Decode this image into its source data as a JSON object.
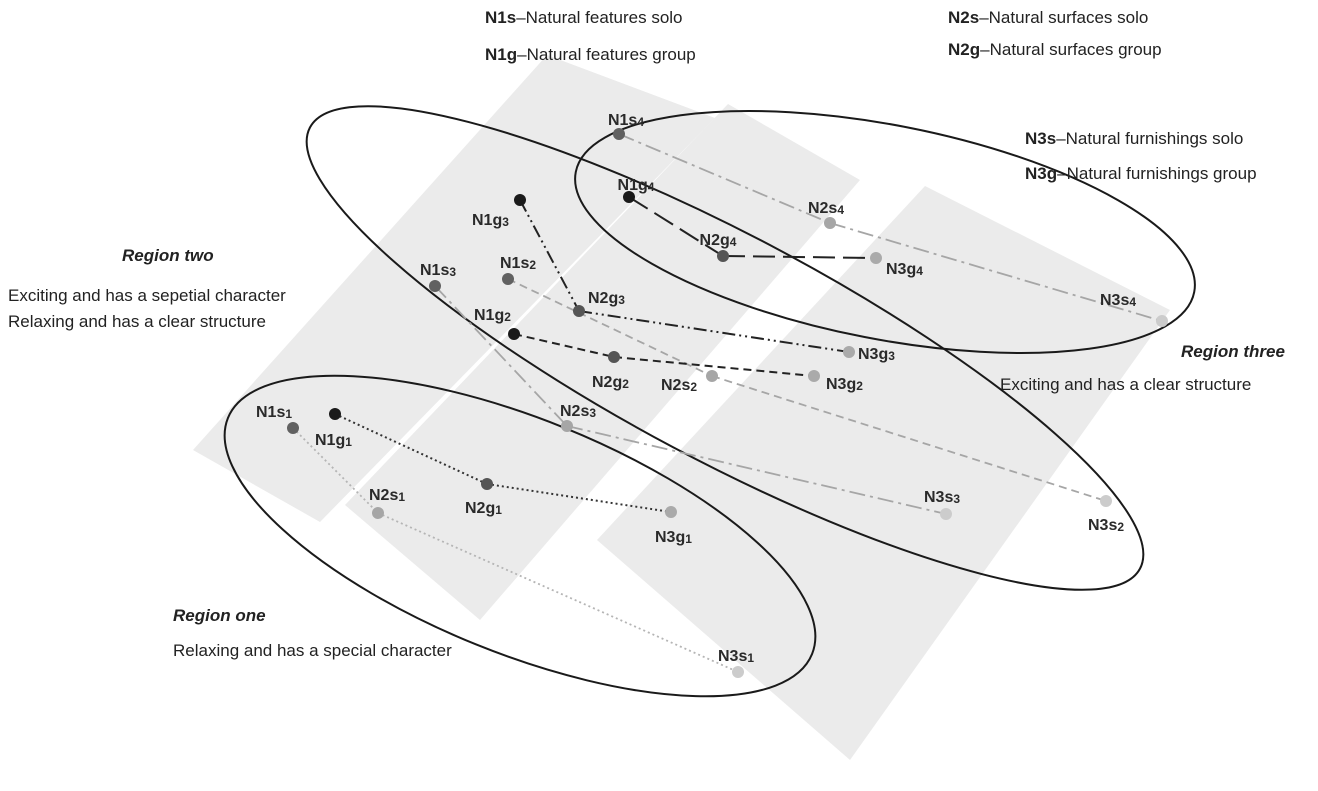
{
  "legend": [
    {
      "code": "N1s",
      "text": "Natural features solo"
    },
    {
      "code": "N1g",
      "text": "Natural features group"
    },
    {
      "code": "N2s",
      "text": "Natural surfaces solo"
    },
    {
      "code": "N2g",
      "text": "Natural surfaces group"
    },
    {
      "code": "N3s",
      "text": "Natural furnishings solo"
    },
    {
      "code": "N3g",
      "text": "Natural furnishings group"
    }
  ],
  "regions": [
    {
      "title": "Region one",
      "description": "Relaxing and has a special character"
    },
    {
      "title": "Region two",
      "description_lines": [
        "Exciting and has a sepetial character",
        "Relaxing and has a clear structure"
      ]
    },
    {
      "title": "Region three",
      "description": "Exciting and has a clear structure"
    }
  ],
  "nodes": [
    {
      "id": "N1s4",
      "base": "N1s",
      "sub": "4",
      "color": "#616161"
    },
    {
      "id": "N1g4",
      "base": "N1g",
      "sub": "4",
      "color": "#1a1a1a"
    },
    {
      "id": "N2s4",
      "base": "N2s",
      "sub": "4",
      "color": "#a6a6a6"
    },
    {
      "id": "N2g4",
      "base": "N2g",
      "sub": "4",
      "color": "#555555"
    },
    {
      "id": "N3g4",
      "base": "N3g",
      "sub": "4",
      "color": "#aaaaaa"
    },
    {
      "id": "N3s4",
      "base": "N3s",
      "sub": "4",
      "color": "#cccccc"
    },
    {
      "id": "N1g3",
      "base": "N1g",
      "sub": "3",
      "color": "#1a1a1a"
    },
    {
      "id": "N1s3",
      "base": "N1s",
      "sub": "3",
      "color": "#616161"
    },
    {
      "id": "N1s2",
      "base": "N1s",
      "sub": "2",
      "color": "#616161"
    },
    {
      "id": "N2g3",
      "base": "N2g",
      "sub": "3",
      "color": "#555555"
    },
    {
      "id": "N1g2",
      "base": "N1g",
      "sub": "2",
      "color": "#1a1a1a"
    },
    {
      "id": "N3g3",
      "base": "N3g",
      "sub": "3",
      "color": "#aaaaaa"
    },
    {
      "id": "N2g2",
      "base": "N2g",
      "sub": "2",
      "color": "#555555"
    },
    {
      "id": "N2s2",
      "base": "N2s",
      "sub": "2",
      "color": "#a6a6a6"
    },
    {
      "id": "N3g2",
      "base": "N3g",
      "sub": "2",
      "color": "#aaaaaa"
    },
    {
      "id": "N2s3",
      "base": "N2s",
      "sub": "3",
      "color": "#a6a6a6"
    },
    {
      "id": "N1s1",
      "base": "N1s",
      "sub": "1",
      "color": "#616161"
    },
    {
      "id": "N1g1",
      "base": "N1g",
      "sub": "1",
      "color": "#1a1a1a"
    },
    {
      "id": "N2s1",
      "base": "N2s",
      "sub": "1",
      "color": "#a6a6a6"
    },
    {
      "id": "N2g1",
      "base": "N2g",
      "sub": "1",
      "color": "#555555"
    },
    {
      "id": "N3g1",
      "base": "N3g",
      "sub": "1",
      "color": "#aaaaaa"
    },
    {
      "id": "N3s3",
      "base": "N3s",
      "sub": "3",
      "color": "#cccccc"
    },
    {
      "id": "N3s2",
      "base": "N3s",
      "sub": "2",
      "color": "#cccccc"
    },
    {
      "id": "N3s1",
      "base": "N3s",
      "sub": "1",
      "color": "#cccccc"
    }
  ],
  "connections": [
    {
      "from": "N1s4",
      "to": "N2s4",
      "color": "#a6a6a6",
      "style": "dash-dot"
    },
    {
      "from": "N2s4",
      "to": "N3s4",
      "color": "#a6a6a6",
      "style": "dash-dot"
    },
    {
      "from": "N1g4",
      "to": "N2g4",
      "color": "#222222",
      "style": "long-dash"
    },
    {
      "from": "N2g4",
      "to": "N3g4",
      "color": "#222222",
      "style": "long-dash"
    },
    {
      "from": "N1g3",
      "to": "N2g3",
      "color": "#222222",
      "style": "dash-dot-dot"
    },
    {
      "from": "N2g3",
      "to": "N3g3",
      "color": "#222222",
      "style": "dash-dot-dot"
    },
    {
      "from": "N1s3",
      "to": "N2s3",
      "color": "#a6a6a6",
      "style": "dash-dot"
    },
    {
      "from": "N2s3",
      "to": "N3s3",
      "color": "#a6a6a6",
      "style": "dash-dot"
    },
    {
      "from": "N1s2",
      "to": "N2s2",
      "color": "#a6a6a6",
      "style": "dashed"
    },
    {
      "from": "N2s2",
      "to": "N3s2",
      "color": "#a6a6a6",
      "style": "dashed"
    },
    {
      "from": "N1g2",
      "to": "N2g2",
      "color": "#222222",
      "style": "dashed"
    },
    {
      "from": "N2g2",
      "to": "N3g2",
      "color": "#222222",
      "style": "dashed"
    },
    {
      "from": "N1g1",
      "to": "N2g1",
      "color": "#333333",
      "style": "dotted"
    },
    {
      "from": "N2g1",
      "to": "N3g1",
      "color": "#333333",
      "style": "dotted"
    },
    {
      "from": "N1s1",
      "to": "N2s1",
      "color": "#b5b5b5",
      "style": "dotted"
    },
    {
      "from": "N2s1",
      "to": "N3s1",
      "color": "#b5b5b5",
      "style": "dotted"
    }
  ]
}
